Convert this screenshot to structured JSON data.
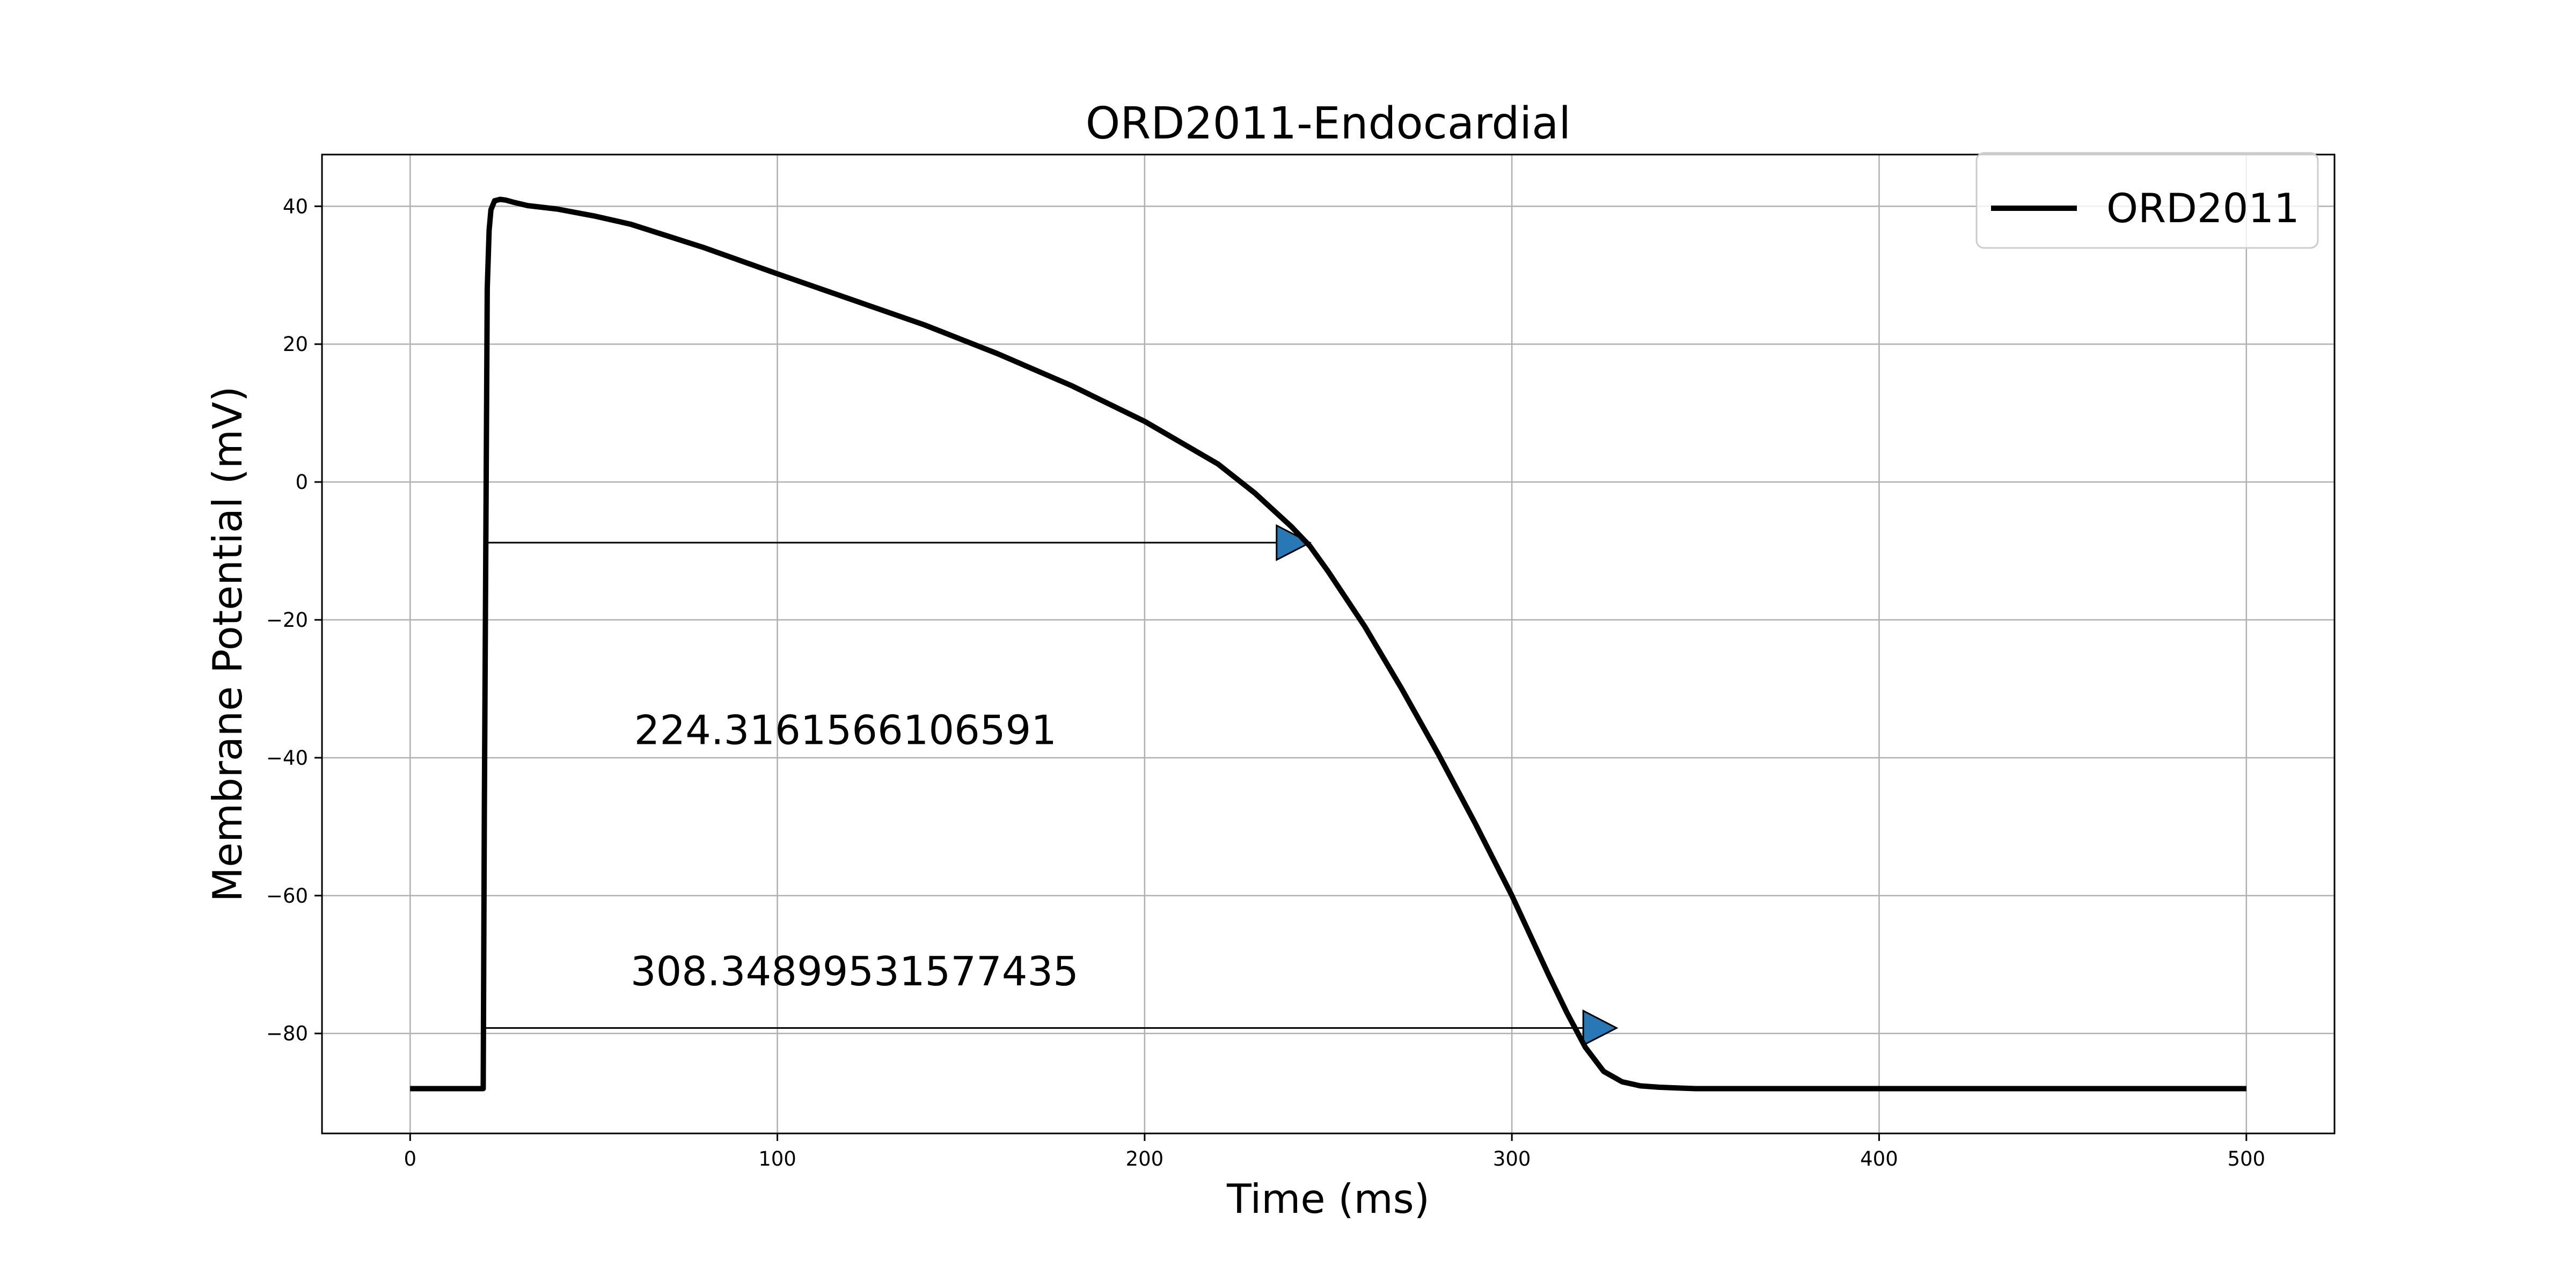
{
  "chart_data": {
    "type": "line",
    "title": "ORD2011-Endocardial",
    "xlabel": "Time (ms)",
    "ylabel": "Membrane Potential (mV)",
    "xlim": [
      -24,
      524
    ],
    "ylim": [
      -94.5,
      47.5
    ],
    "xticks": [
      0,
      100,
      200,
      300,
      400,
      500
    ],
    "yticks": [
      -80,
      -60,
      -40,
      -20,
      0,
      20,
      40
    ],
    "ytick_labels": [
      "−80",
      "−60",
      "−40",
      "−20",
      "0",
      "20",
      "40"
    ],
    "grid": true,
    "legend": {
      "position": "top-right",
      "entries": [
        "ORD2011"
      ]
    },
    "line_color": "#000000",
    "arrow_color": "#2878b5",
    "series": [
      {
        "name": "ORD2011",
        "x": [
          0,
          19.9,
          20.2,
          20.6,
          21.0,
          21.5,
          22.0,
          23.0,
          24.5,
          26,
          28,
          32,
          40,
          50,
          60,
          80,
          100,
          120,
          140,
          160,
          180,
          200,
          220,
          230,
          240,
          245,
          250,
          260,
          270,
          280,
          290,
          300,
          310,
          315,
          320,
          325,
          330,
          335,
          340,
          345,
          350,
          360,
          380,
          400,
          450,
          500
        ],
        "y": [
          -88,
          -88,
          -48,
          -10,
          28,
          36.5,
          39.5,
          40.8,
          41.0,
          40.9,
          40.6,
          40.1,
          39.6,
          38.6,
          37.4,
          34.0,
          30.2,
          26.5,
          22.8,
          18.6,
          14.0,
          8.8,
          2.6,
          -1.6,
          -6.5,
          -9.3,
          -13.0,
          -21,
          -30,
          -39.5,
          -49.5,
          -60,
          -71.5,
          -77,
          -82,
          -85.5,
          -87,
          -87.6,
          -87.8,
          -87.9,
          -88,
          -88,
          -88,
          -88,
          -88,
          -88
        ]
      }
    ],
    "annotations": [
      {
        "text": "224.3161566106591",
        "x": 61,
        "y": -38,
        "arrow_from": [
          21,
          -8.8
        ],
        "arrow_to": [
          245,
          -8.8
        ]
      },
      {
        "text": "308.34899531577435",
        "x": 60,
        "y": -73,
        "arrow_from": [
          20,
          -79.2
        ],
        "arrow_to": [
          328.5,
          -79.2
        ]
      }
    ]
  }
}
